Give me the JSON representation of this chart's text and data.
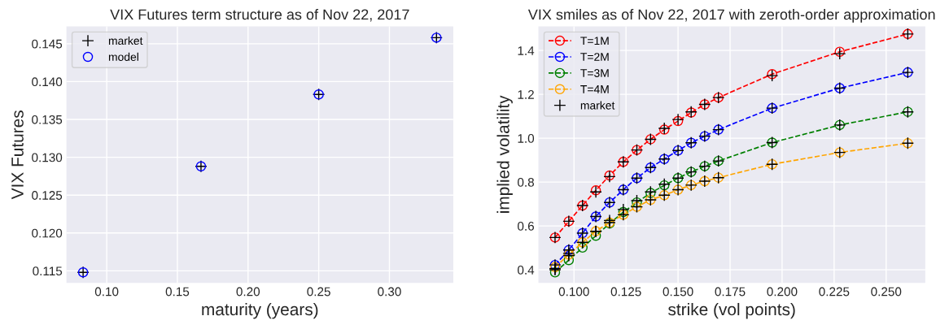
{
  "chart_data": [
    {
      "type": "scatter",
      "title": "VIX Futures term structure as of Nov 22, 2017",
      "xlabel": "maturity (years)",
      "ylabel": "VIX Futures",
      "x": [
        0.0833,
        0.1667,
        0.25,
        0.3333
      ],
      "series": [
        {
          "name": "market",
          "color": "#000000",
          "marker": "cross",
          "values": [
            0.1148,
            0.1288,
            0.1383,
            0.1458
          ]
        },
        {
          "name": "model",
          "color": "#0000ff",
          "marker": "circle",
          "values": [
            0.1148,
            0.1288,
            0.1383,
            0.1458
          ]
        }
      ],
      "xlim": [
        0.0715,
        0.3452
      ],
      "ylim": [
        0.1134,
        0.1473
      ],
      "xticks": [
        {
          "value": 0.1,
          "label": "0.10"
        },
        {
          "value": 0.15,
          "label": "0.15"
        },
        {
          "value": 0.2,
          "label": "0.20"
        },
        {
          "value": 0.25,
          "label": "0.25"
        },
        {
          "value": 0.3,
          "label": "0.30"
        }
      ],
      "yticks": [
        0.115,
        {
          "value": 0.12,
          "label": "0.120"
        },
        0.125,
        {
          "value": 0.13,
          "label": "0.130"
        },
        0.135,
        {
          "value": 0.14,
          "label": "0.140"
        },
        0.145
      ],
      "grid": true,
      "legend": "top left"
    },
    {
      "type": "line",
      "title": "VIX smiles as of Nov 22, 2017 with zeroth-order approximation",
      "xlabel": "strike (vol points)",
      "ylabel": "implied volatility",
      "x": [
        0.0909,
        0.0975,
        0.1041,
        0.1105,
        0.1171,
        0.1237,
        0.1302,
        0.1368,
        0.1434,
        0.15,
        0.1563,
        0.1628,
        0.1694,
        0.1952,
        0.2277,
        0.2604
      ],
      "series": [
        {
          "name": "T=1M",
          "color": "#ff0000",
          "marker": "circle",
          "line_style": "dashed",
          "values": [
            0.547,
            0.621,
            0.693,
            0.762,
            0.83,
            0.892,
            0.946,
            0.995,
            1.039,
            1.078,
            1.117,
            1.154,
            1.185,
            1.292,
            1.394,
            1.475
          ]
        },
        {
          "name": "T=2M",
          "color": "#0000ff",
          "marker": "circle",
          "line_style": "dashed",
          "values": [
            0.422,
            0.49,
            0.567,
            0.643,
            0.707,
            0.765,
            0.818,
            0.866,
            0.905,
            0.944,
            0.979,
            1.009,
            1.039,
            1.137,
            1.228,
            1.3
          ]
        },
        {
          "name": "T=3M",
          "color": "#008000",
          "marker": "circle",
          "line_style": "dashed",
          "values": [
            0.388,
            0.444,
            0.501,
            0.555,
            0.611,
            0.663,
            0.707,
            0.75,
            0.785,
            0.818,
            0.846,
            0.872,
            0.896,
            0.98,
            1.06,
            1.12
          ]
        },
        {
          "name": "T=4M",
          "color": "#ffa500",
          "marker": "circle",
          "line_style": "dashed",
          "values": [
            0.412,
            0.469,
            0.525,
            0.576,
            0.615,
            0.651,
            0.687,
            0.719,
            0.74,
            0.765,
            0.786,
            0.804,
            0.82,
            0.881,
            0.935,
            0.977
          ]
        },
        {
          "name": "market",
          "type": "scatter",
          "color": "#000000",
          "marker": "cross",
          "x": [
            0.0909,
            0.0975,
            0.1041,
            0.1105,
            0.1171,
            0.1237,
            0.1302,
            0.1368,
            0.1434,
            0.15,
            0.1563,
            0.1628,
            0.1694,
            0.1952,
            0.2277,
            0.2604,
            0.0909,
            0.0975,
            0.1041,
            0.1105,
            0.1171,
            0.1237,
            0.1302,
            0.1368,
            0.1434,
            0.15,
            0.1563,
            0.1628,
            0.1694,
            0.1952,
            0.2277,
            0.2604,
            0.0909,
            0.0975,
            0.1041,
            0.1105,
            0.1171,
            0.1237,
            0.1302,
            0.1368,
            0.1434,
            0.15,
            0.1563,
            0.1628,
            0.1694,
            0.1952,
            0.2277,
            0.2604,
            0.0909,
            0.0975,
            0.1041,
            0.1105,
            0.1171,
            0.1237,
            0.1302,
            0.1368,
            0.1434,
            0.15,
            0.1563,
            0.1628,
            0.1694,
            0.1952,
            0.2277,
            0.2604
          ],
          "values": [
            0.547,
            0.621,
            0.693,
            0.755,
            0.825,
            0.892,
            0.946,
            0.995,
            1.045,
            1.085,
            1.12,
            1.154,
            1.185,
            1.285,
            1.385,
            1.475,
            0.422,
            0.49,
            0.567,
            0.643,
            0.707,
            0.765,
            0.818,
            0.866,
            0.905,
            0.944,
            0.979,
            1.009,
            1.039,
            1.137,
            1.228,
            1.3,
            0.4,
            0.465,
            0.525,
            0.575,
            0.625,
            0.675,
            0.715,
            0.755,
            0.79,
            0.818,
            0.846,
            0.872,
            0.896,
            0.98,
            1.06,
            1.12,
            0.405,
            0.475,
            0.525,
            0.576,
            0.615,
            0.651,
            0.687,
            0.719,
            0.74,
            0.765,
            0.786,
            0.804,
            0.82,
            0.881,
            0.935,
            0.977
          ]
        }
      ],
      "xlim": [
        0.0829,
        0.2688
      ],
      "ylim": [
        0.34,
        1.51
      ],
      "xticks": [
        {
          "value": 0.1,
          "label": "0.100"
        },
        0.125,
        {
          "value": 0.15,
          "label": "0.150"
        },
        0.175,
        {
          "value": 0.2,
          "label": "0.200"
        },
        0.225,
        {
          "value": 0.25,
          "label": "0.250"
        }
      ],
      "yticks": [
        0.4,
        0.6,
        0.8,
        {
          "value": 1.0,
          "label": "1.0"
        },
        1.2,
        1.4
      ],
      "grid": true,
      "legend": "top left"
    }
  ]
}
